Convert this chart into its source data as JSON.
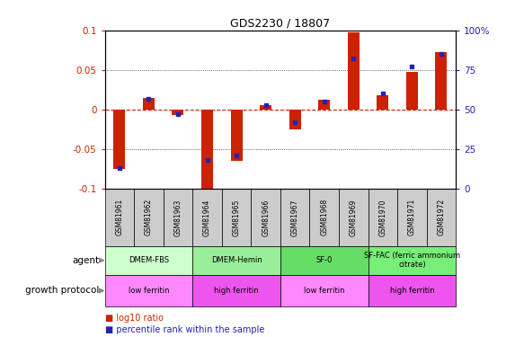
{
  "title": "GDS2230 / 18807",
  "samples": [
    "GSM81961",
    "GSM81962",
    "GSM81963",
    "GSM81964",
    "GSM81965",
    "GSM81966",
    "GSM81967",
    "GSM81968",
    "GSM81969",
    "GSM81970",
    "GSM81971",
    "GSM81972"
  ],
  "log10_ratio": [
    -0.075,
    0.015,
    -0.007,
    -0.105,
    -0.065,
    0.005,
    -0.025,
    0.012,
    0.098,
    0.018,
    0.048,
    0.072
  ],
  "percentile_rank": [
    13,
    57,
    47,
    18,
    21,
    53,
    42,
    55,
    82,
    60,
    77,
    85
  ],
  "ylim": [
    -0.1,
    0.1
  ],
  "yticks_left": [
    -0.1,
    -0.05,
    0,
    0.05,
    0.1
  ],
  "yticks_right": [
    0,
    25,
    50,
    75,
    100
  ],
  "bar_color": "#cc2200",
  "dot_color": "#2222bb",
  "agent_groups": [
    {
      "label": "DMEM-FBS",
      "start": 0,
      "end": 2,
      "color": "#ccffcc"
    },
    {
      "label": "DMEM-Hemin",
      "start": 3,
      "end": 5,
      "color": "#99ee99"
    },
    {
      "label": "SF-0",
      "start": 6,
      "end": 8,
      "color": "#66dd66"
    },
    {
      "label": "SF-FAC (ferric ammonium\ncitrate)",
      "start": 9,
      "end": 11,
      "color": "#77ee77"
    }
  ],
  "growth_groups": [
    {
      "label": "low ferritin",
      "start": 0,
      "end": 2,
      "color": "#ff88ff"
    },
    {
      "label": "high ferritin",
      "start": 3,
      "end": 5,
      "color": "#ee55ee"
    },
    {
      "label": "low ferritin",
      "start": 6,
      "end": 8,
      "color": "#ff88ff"
    },
    {
      "label": "high ferritin",
      "start": 9,
      "end": 11,
      "color": "#ee55ee"
    }
  ]
}
